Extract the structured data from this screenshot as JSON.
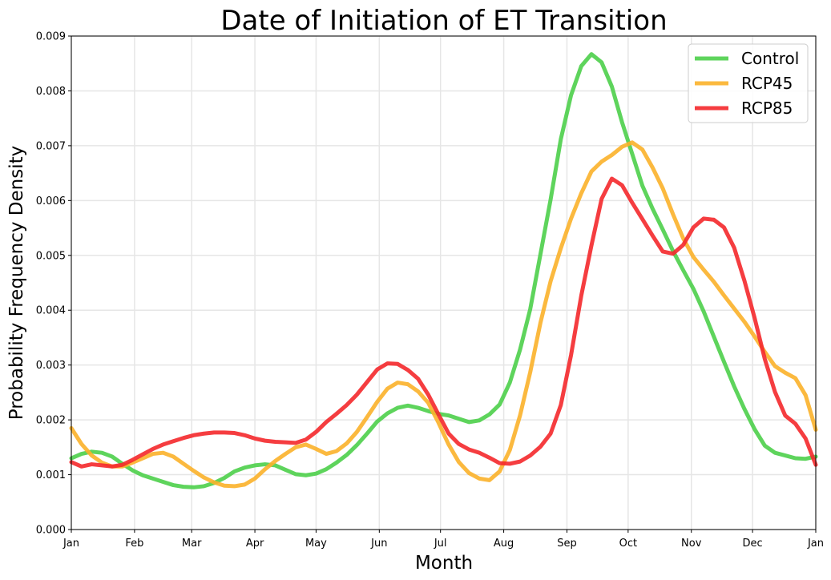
{
  "chart_data": {
    "type": "line",
    "title": "Date of Initiation of ET Transition",
    "xlabel": "Month",
    "ylabel": "Probability Frequency Density",
    "xlim": [
      0,
      365
    ],
    "ylim": [
      0,
      0.009
    ],
    "grid": true,
    "legend_position": "top-right",
    "x_ticks": [
      {
        "x": 0,
        "label": "Jan"
      },
      {
        "x": 31,
        "label": "Feb"
      },
      {
        "x": 59,
        "label": "Mar"
      },
      {
        "x": 90,
        "label": "Apr"
      },
      {
        "x": 120,
        "label": "May"
      },
      {
        "x": 151,
        "label": "Jun"
      },
      {
        "x": 181,
        "label": "Jul"
      },
      {
        "x": 212,
        "label": "Aug"
      },
      {
        "x": 243,
        "label": "Sep"
      },
      {
        "x": 273,
        "label": "Oct"
      },
      {
        "x": 304,
        "label": "Nov"
      },
      {
        "x": 334,
        "label": "Dec"
      },
      {
        "x": 365,
        "label": "Jan"
      }
    ],
    "y_ticks": [
      "0.000",
      "0.001",
      "0.002",
      "0.003",
      "0.004",
      "0.005",
      "0.006",
      "0.007",
      "0.008",
      "0.009"
    ],
    "y_tick_values": [
      0,
      0.001,
      0.002,
      0.003,
      0.004,
      0.005,
      0.006,
      0.007,
      0.008,
      0.009
    ],
    "series": [
      {
        "name": "Control",
        "color": "#4dcf4a",
        "points": [
          [
            0,
            0.0013
          ],
          [
            5,
            0.00138
          ],
          [
            10,
            0.00142
          ],
          [
            15,
            0.0014
          ],
          [
            20,
            0.00133
          ],
          [
            25,
            0.0012
          ],
          [
            30,
            0.00108
          ],
          [
            35,
            0.00099
          ],
          [
            40,
            0.00093
          ],
          [
            45,
            0.00087
          ],
          [
            50,
            0.00081
          ],
          [
            55,
            0.00078
          ],
          [
            60,
            0.00077
          ],
          [
            65,
            0.00079
          ],
          [
            70,
            0.00085
          ],
          [
            75,
            0.00094
          ],
          [
            80,
            0.00106
          ],
          [
            85,
            0.00113
          ],
          [
            90,
            0.00117
          ],
          [
            95,
            0.00119
          ],
          [
            100,
            0.00117
          ],
          [
            105,
            0.00109
          ],
          [
            110,
            0.00101
          ],
          [
            115,
            0.00099
          ],
          [
            120,
            0.00102
          ],
          [
            125,
            0.0011
          ],
          [
            130,
            0.00122
          ],
          [
            135,
            0.00136
          ],
          [
            140,
            0.00154
          ],
          [
            145,
            0.00175
          ],
          [
            150,
            0.00197
          ],
          [
            155,
            0.00212
          ],
          [
            160,
            0.00222
          ],
          [
            165,
            0.00226
          ],
          [
            170,
            0.00222
          ],
          [
            175,
            0.00216
          ],
          [
            180,
            0.00211
          ],
          [
            185,
            0.00208
          ],
          [
            190,
            0.00202
          ],
          [
            195,
            0.00196
          ],
          [
            200,
            0.00199
          ],
          [
            205,
            0.0021
          ],
          [
            210,
            0.00228
          ],
          [
            215,
            0.00268
          ],
          [
            220,
            0.00328
          ],
          [
            225,
            0.00402
          ],
          [
            230,
            0.00502
          ],
          [
            235,
            0.00602
          ],
          [
            240,
            0.00712
          ],
          [
            245,
            0.00792
          ],
          [
            250,
            0.00845
          ],
          [
            255,
            0.00867
          ],
          [
            260,
            0.00852
          ],
          [
            265,
            0.00808
          ],
          [
            270,
            0.00743
          ],
          [
            275,
            0.00685
          ],
          [
            280,
            0.00627
          ],
          [
            285,
            0.00585
          ],
          [
            290,
            0.00547
          ],
          [
            295,
            0.00508
          ],
          [
            300,
            0.00473
          ],
          [
            305,
            0.00439
          ],
          [
            310,
            0.00398
          ],
          [
            315,
            0.00352
          ],
          [
            320,
            0.00306
          ],
          [
            325,
            0.00261
          ],
          [
            330,
            0.0022
          ],
          [
            335,
            0.00183
          ],
          [
            340,
            0.00153
          ],
          [
            345,
            0.0014
          ],
          [
            350,
            0.00135
          ],
          [
            355,
            0.0013
          ],
          [
            360,
            0.00129
          ],
          [
            365,
            0.00133
          ]
        ]
      },
      {
        "name": "RCP45",
        "color": "#fbb12a",
        "points": [
          [
            0,
            0.00185
          ],
          [
            5,
            0.00156
          ],
          [
            10,
            0.00135
          ],
          [
            15,
            0.00122
          ],
          [
            20,
            0.00115
          ],
          [
            25,
            0.00115
          ],
          [
            30,
            0.00122
          ],
          [
            35,
            0.0013
          ],
          [
            40,
            0.00138
          ],
          [
            45,
            0.0014
          ],
          [
            50,
            0.00133
          ],
          [
            55,
            0.0012
          ],
          [
            60,
            0.00107
          ],
          [
            65,
            0.00095
          ],
          [
            70,
            0.00086
          ],
          [
            75,
            0.0008
          ],
          [
            80,
            0.00079
          ],
          [
            85,
            0.00082
          ],
          [
            90,
            0.00093
          ],
          [
            95,
            0.0011
          ],
          [
            100,
            0.00125
          ],
          [
            105,
            0.00138
          ],
          [
            110,
            0.0015
          ],
          [
            115,
            0.00155
          ],
          [
            120,
            0.00147
          ],
          [
            125,
            0.00138
          ],
          [
            130,
            0.00143
          ],
          [
            135,
            0.00157
          ],
          [
            140,
            0.00178
          ],
          [
            145,
            0.00205
          ],
          [
            150,
            0.00233
          ],
          [
            155,
            0.00257
          ],
          [
            160,
            0.00268
          ],
          [
            165,
            0.00265
          ],
          [
            170,
            0.00252
          ],
          [
            175,
            0.00231
          ],
          [
            180,
            0.00195
          ],
          [
            185,
            0.00155
          ],
          [
            190,
            0.00123
          ],
          [
            195,
            0.00103
          ],
          [
            200,
            0.00093
          ],
          [
            205,
            0.0009
          ],
          [
            210,
            0.00106
          ],
          [
            215,
            0.00145
          ],
          [
            220,
            0.00208
          ],
          [
            225,
            0.00287
          ],
          [
            230,
            0.00377
          ],
          [
            235,
            0.00453
          ],
          [
            240,
            0.00513
          ],
          [
            245,
            0.00567
          ],
          [
            250,
            0.00613
          ],
          [
            255,
            0.00653
          ],
          [
            260,
            0.00671
          ],
          [
            265,
            0.00683
          ],
          [
            270,
            0.00698
          ],
          [
            275,
            0.00706
          ],
          [
            280,
            0.00693
          ],
          [
            285,
            0.0066
          ],
          [
            290,
            0.00622
          ],
          [
            295,
            0.00575
          ],
          [
            300,
            0.00531
          ],
          [
            305,
            0.00497
          ],
          [
            310,
            0.00474
          ],
          [
            315,
            0.00452
          ],
          [
            320,
            0.00427
          ],
          [
            325,
            0.00403
          ],
          [
            330,
            0.00379
          ],
          [
            335,
            0.00352
          ],
          [
            340,
            0.00324
          ],
          [
            345,
            0.00298
          ],
          [
            350,
            0.00286
          ],
          [
            355,
            0.00276
          ],
          [
            360,
            0.00245
          ],
          [
            365,
            0.00182
          ]
        ]
      },
      {
        "name": "RCP85",
        "color": "#f4282b",
        "points": [
          [
            0,
            0.00123
          ],
          [
            5,
            0.00115
          ],
          [
            10,
            0.00119
          ],
          [
            15,
            0.00117
          ],
          [
            20,
            0.00115
          ],
          [
            25,
            0.00118
          ],
          [
            30,
            0.00127
          ],
          [
            35,
            0.00137
          ],
          [
            40,
            0.00147
          ],
          [
            45,
            0.00155
          ],
          [
            50,
            0.00161
          ],
          [
            55,
            0.00167
          ],
          [
            60,
            0.00172
          ],
          [
            65,
            0.00175
          ],
          [
            70,
            0.00177
          ],
          [
            75,
            0.00177
          ],
          [
            80,
            0.00176
          ],
          [
            85,
            0.00172
          ],
          [
            90,
            0.00166
          ],
          [
            95,
            0.00162
          ],
          [
            100,
            0.0016
          ],
          [
            105,
            0.00159
          ],
          [
            110,
            0.00158
          ],
          [
            115,
            0.00164
          ],
          [
            120,
            0.00178
          ],
          [
            125,
            0.00196
          ],
          [
            130,
            0.00211
          ],
          [
            135,
            0.00227
          ],
          [
            140,
            0.00246
          ],
          [
            145,
            0.00269
          ],
          [
            150,
            0.00292
          ],
          [
            155,
            0.00303
          ],
          [
            160,
            0.00302
          ],
          [
            165,
            0.00291
          ],
          [
            170,
            0.00275
          ],
          [
            175,
            0.00246
          ],
          [
            180,
            0.0021
          ],
          [
            185,
            0.00175
          ],
          [
            190,
            0.00156
          ],
          [
            195,
            0.00146
          ],
          [
            200,
            0.0014
          ],
          [
            205,
            0.00131
          ],
          [
            210,
            0.00121
          ],
          [
            215,
            0.0012
          ],
          [
            220,
            0.00124
          ],
          [
            225,
            0.00135
          ],
          [
            230,
            0.00151
          ],
          [
            235,
            0.00175
          ],
          [
            240,
            0.00227
          ],
          [
            245,
            0.00318
          ],
          [
            250,
            0.00426
          ],
          [
            255,
            0.00518
          ],
          [
            260,
            0.00603
          ],
          [
            265,
            0.0064
          ],
          [
            270,
            0.00628
          ],
          [
            275,
            0.00596
          ],
          [
            280,
            0.00566
          ],
          [
            285,
            0.00536
          ],
          [
            290,
            0.00507
          ],
          [
            295,
            0.00503
          ],
          [
            300,
            0.00519
          ],
          [
            305,
            0.00551
          ],
          [
            310,
            0.00567
          ],
          [
            315,
            0.00565
          ],
          [
            320,
            0.00551
          ],
          [
            325,
            0.00514
          ],
          [
            330,
            0.00454
          ],
          [
            335,
            0.00386
          ],
          [
            340,
            0.00311
          ],
          [
            345,
            0.00251
          ],
          [
            350,
            0.00208
          ],
          [
            355,
            0.00193
          ],
          [
            360,
            0.00166
          ],
          [
            365,
            0.00118
          ]
        ]
      }
    ]
  }
}
